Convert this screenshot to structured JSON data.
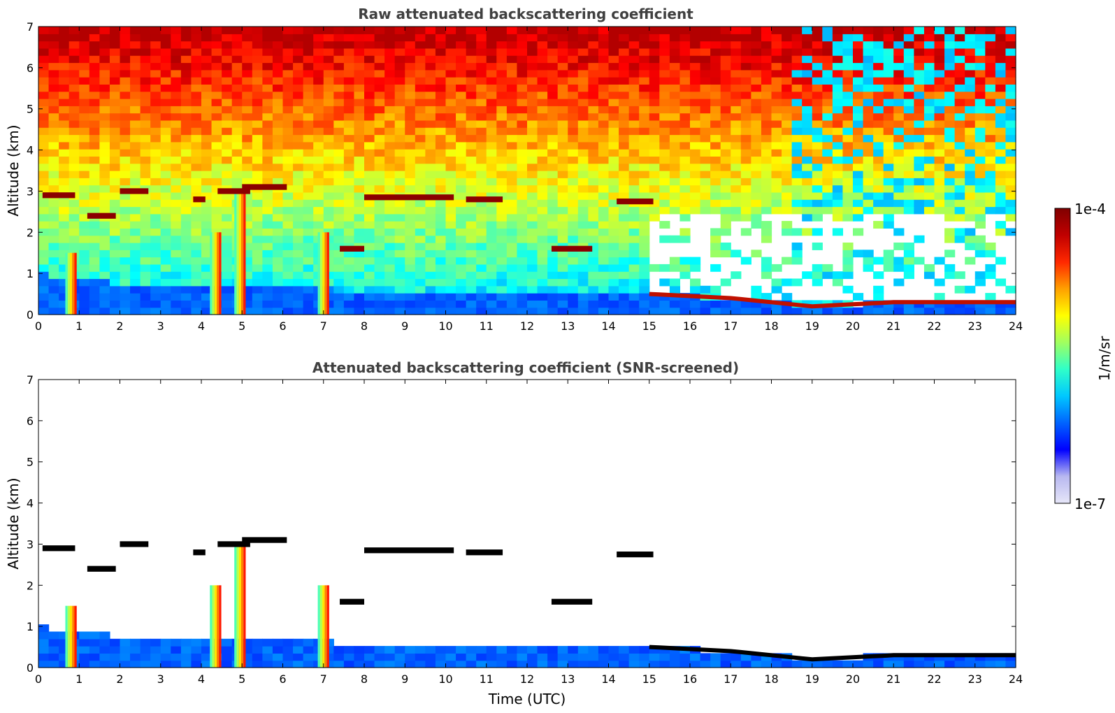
{
  "chart_data": [
    {
      "type": "heatmap",
      "title": "Raw attenuated backscattering coefficient",
      "xlabel": "",
      "ylabel": "Altitude (km)",
      "xlim": [
        0,
        24
      ],
      "ylim": [
        0,
        7
      ],
      "xticks": [
        "0",
        "1",
        "2",
        "3",
        "4",
        "5",
        "6",
        "7",
        "8",
        "9",
        "10",
        "11",
        "12",
        "13",
        "14",
        "15",
        "16",
        "17",
        "18",
        "19",
        "20",
        "21",
        "22",
        "23",
        "24"
      ],
      "yticks": [
        "0",
        "1",
        "2",
        "3",
        "4",
        "5",
        "6",
        "7"
      ],
      "colormap": "jet",
      "screened": false,
      "cloud_layers": [
        {
          "t_start": 0.1,
          "t_end": 0.9,
          "alt_km": 2.9
        },
        {
          "t_start": 1.2,
          "t_end": 1.9,
          "alt_km": 2.4
        },
        {
          "t_start": 2.0,
          "t_end": 2.7,
          "alt_km": 3.0
        },
        {
          "t_start": 3.8,
          "t_end": 4.1,
          "alt_km": 2.8
        },
        {
          "t_start": 4.4,
          "t_end": 5.2,
          "alt_km": 3.0
        },
        {
          "t_start": 5.0,
          "t_end": 6.1,
          "alt_km": 3.1
        },
        {
          "t_start": 8.0,
          "t_end": 10.2,
          "alt_km": 2.85
        },
        {
          "t_start": 10.5,
          "t_end": 11.4,
          "alt_km": 2.8
        },
        {
          "t_start": 14.2,
          "t_end": 15.1,
          "alt_km": 2.75
        },
        {
          "t_start": 7.4,
          "t_end": 8.0,
          "alt_km": 1.6
        },
        {
          "t_start": 12.6,
          "t_end": 13.6,
          "alt_km": 1.6
        }
      ],
      "boundary_layer": [
        {
          "t": 0,
          "top_km": 1.0
        },
        {
          "t": 2,
          "top_km": 0.75
        },
        {
          "t": 4,
          "top_km": 0.7
        },
        {
          "t": 6,
          "top_km": 0.7
        },
        {
          "t": 8,
          "top_km": 0.55
        },
        {
          "t": 10,
          "top_km": 0.55
        },
        {
          "t": 12,
          "top_km": 0.55
        },
        {
          "t": 14,
          "top_km": 0.6
        },
        {
          "t": 15,
          "top_km": 0.5
        },
        {
          "t": 17,
          "top_km": 0.4
        },
        {
          "t": 19,
          "top_km": 0.2
        },
        {
          "t": 21,
          "top_km": 0.3
        },
        {
          "t": 24,
          "top_km": 0.3
        }
      ],
      "aerosol_plumes": [
        {
          "t": 0.8,
          "top_km": 1.5
        },
        {
          "t": 4.35,
          "top_km": 2.0
        },
        {
          "t": 4.95,
          "top_km": 3.0
        },
        {
          "t": 7.0,
          "top_km": 2.0
        }
      ]
    },
    {
      "type": "heatmap",
      "title": "Attenuated backscattering coefficient (SNR-screened)",
      "xlabel": "Time (UTC)",
      "ylabel": "Altitude (km)",
      "xlim": [
        0,
        24
      ],
      "ylim": [
        0,
        7
      ],
      "xticks": [
        "0",
        "1",
        "2",
        "3",
        "4",
        "5",
        "6",
        "7",
        "8",
        "9",
        "10",
        "11",
        "12",
        "13",
        "14",
        "15",
        "16",
        "17",
        "18",
        "19",
        "20",
        "21",
        "22",
        "23",
        "24"
      ],
      "yticks": [
        "0",
        "1",
        "2",
        "3",
        "4",
        "5",
        "6",
        "7"
      ],
      "colormap": "jet",
      "screened": true
    }
  ],
  "colorbar": {
    "label": "1/m/sr",
    "max_label": "1e-4",
    "min_label": "1e-7",
    "colors": [
      "#e6e6f8",
      "#b8b8f0",
      "#0000ff",
      "#0064ff",
      "#00c8ff",
      "#30ffc8",
      "#a0ff60",
      "#ffff00",
      "#ffa000",
      "#ff2800",
      "#c00000",
      "#800000"
    ]
  }
}
